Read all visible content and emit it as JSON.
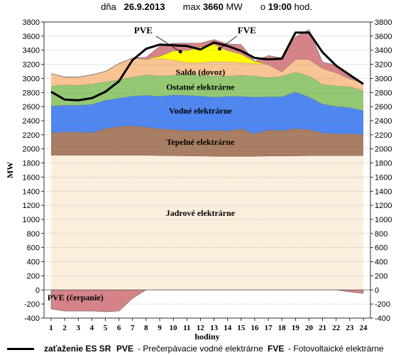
{
  "header": {
    "day_label": "dňa",
    "date": "26.9.2013",
    "max_label": "max",
    "max_value": "3660",
    "max_unit": "MW",
    "time_label": "o",
    "time_value": "19:00",
    "time_unit": "hod."
  },
  "legend": {
    "load_line_label": "zaťaženie ES SR",
    "pve_abbr": "PVE",
    "pve_desc": "- Prečerpávacie vodné elektrárne",
    "fve_abbr": "FVE",
    "fve_desc": "- Fotovoltaické elektrárne"
  },
  "chart_data": {
    "type": "area",
    "xlabel": "hodiny",
    "ylabel": "MW",
    "ylim": [
      -400,
      3800
    ],
    "ytick_step": 200,
    "x": [
      1,
      2,
      3,
      4,
      5,
      6,
      7,
      8,
      9,
      10,
      11,
      12,
      13,
      14,
      15,
      16,
      17,
      18,
      19,
      20,
      21,
      22,
      23,
      24
    ],
    "series": [
      {
        "name": "Jadrové elektrárne",
        "color": "#fbeedd",
        "values": [
          1910,
          1910,
          1910,
          1910,
          1910,
          1910,
          1910,
          1910,
          1905,
          1905,
          1900,
          1900,
          1895,
          1895,
          1895,
          1895,
          1900,
          1900,
          1900,
          1905,
          1905,
          1905,
          1905,
          1905
        ]
      },
      {
        "name": "Tepelné elektrárne",
        "color": "#a87d64",
        "values": [
          320,
          330,
          330,
          320,
          380,
          410,
          420,
          400,
          380,
          370,
          360,
          360,
          370,
          360,
          390,
          320,
          370,
          360,
          390,
          370,
          320,
          310,
          310,
          300
        ]
      },
      {
        "name": "Vodné elektrárne",
        "color": "#4f86f0",
        "values": [
          380,
          380,
          380,
          400,
          400,
          400,
          420,
          450,
          460,
          490,
          500,
          490,
          470,
          490,
          460,
          520,
          470,
          480,
          520,
          460,
          410,
          390,
          370,
          340
        ]
      },
      {
        "name": "Ostatné elektrárne",
        "color": "#94c873",
        "values": [
          280,
          290,
          280,
          290,
          260,
          260,
          270,
          290,
          290,
          280,
          300,
          300,
          300,
          290,
          300,
          300,
          270,
          290,
          280,
          300,
          280,
          290,
          300,
          280
        ]
      },
      {
        "name": "Saldo (dovoz)",
        "color": "#f9c494",
        "values": [
          180,
          110,
          120,
          130,
          150,
          230,
          270,
          220,
          250,
          215,
          165,
          175,
          205,
          200,
          180,
          175,
          185,
          65,
          180,
          235,
          225,
          185,
          110,
          105
        ]
      },
      {
        "name": "FVE",
        "color": "#ffff00",
        "values": [
          0,
          0,
          0,
          0,
          0,
          0,
          0,
          0,
          30,
          130,
          170,
          220,
          240,
          160,
          120,
          30,
          0,
          0,
          0,
          0,
          0,
          0,
          0,
          0
        ]
      },
      {
        "name": "PVE",
        "color": "#d68388",
        "values": [
          0,
          0,
          0,
          0,
          0,
          0,
          0,
          30,
          140,
          110,
          105,
          55,
          70,
          95,
          135,
          0,
          130,
          195,
          320,
          420,
          90,
          110,
          30,
          0
        ]
      },
      {
        "name": "PVE (čerpanie)",
        "color": "#d68388",
        "values": [
          -270,
          -300,
          -300,
          -300,
          -310,
          -300,
          -120,
          0,
          0,
          0,
          0,
          0,
          0,
          0,
          0,
          0,
          0,
          0,
          0,
          0,
          0,
          0,
          -30,
          -50
        ]
      }
    ],
    "load_series": {
      "name": "zaťaženie ES SR",
      "values": [
        2810,
        2700,
        2690,
        2720,
        2810,
        2960,
        3260,
        3420,
        3480,
        3470,
        3460,
        3410,
        3510,
        3460,
        3390,
        3290,
        3270,
        3280,
        3650,
        3650,
        3370,
        3180,
        3050,
        2920
      ]
    },
    "annotations": {
      "pve": "PVE",
      "fve": "FVE",
      "saldo": "Saldo (dovoz)",
      "ostatne": "Ostatné elektrárne",
      "vodne": "Vodné elektrárne",
      "tepelne": "Tepelné elektrárne",
      "jadrove": "Jadrové elektrárne",
      "pve_cerpanie": "PVE  (čerpanie)"
    },
    "grid": true
  }
}
